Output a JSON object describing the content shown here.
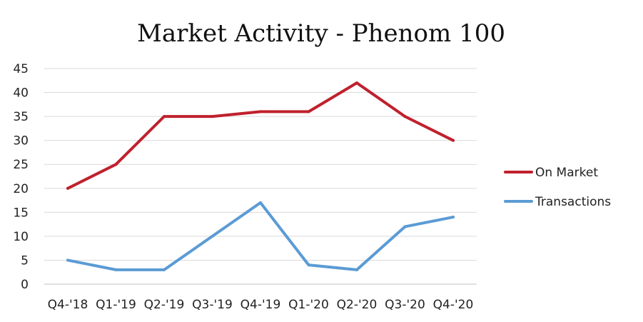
{
  "chart_data": {
    "type": "line",
    "title": "Market Activity - Phenom 100",
    "xlabel": "",
    "ylabel": "",
    "categories": [
      "Q4-'18",
      "Q1-'19",
      "Q2-'19",
      "Q3-'19",
      "Q4-'19",
      "Q1-'20",
      "Q2-'20",
      "Q3-'20",
      "Q4-'20"
    ],
    "ylim": [
      0,
      45
    ],
    "yticks": [
      0,
      5,
      10,
      15,
      20,
      25,
      30,
      35,
      40,
      45
    ],
    "grid": true,
    "legend_position": "right",
    "series": [
      {
        "name": "On Market",
        "color": "#c0202d",
        "values": [
          20,
          25,
          35,
          35,
          36,
          36,
          42,
          35,
          30
        ]
      },
      {
        "name": "Transactions",
        "color": "#5b9bd5",
        "values": [
          5,
          3,
          3,
          10,
          17,
          4,
          3,
          12,
          14
        ]
      }
    ]
  }
}
